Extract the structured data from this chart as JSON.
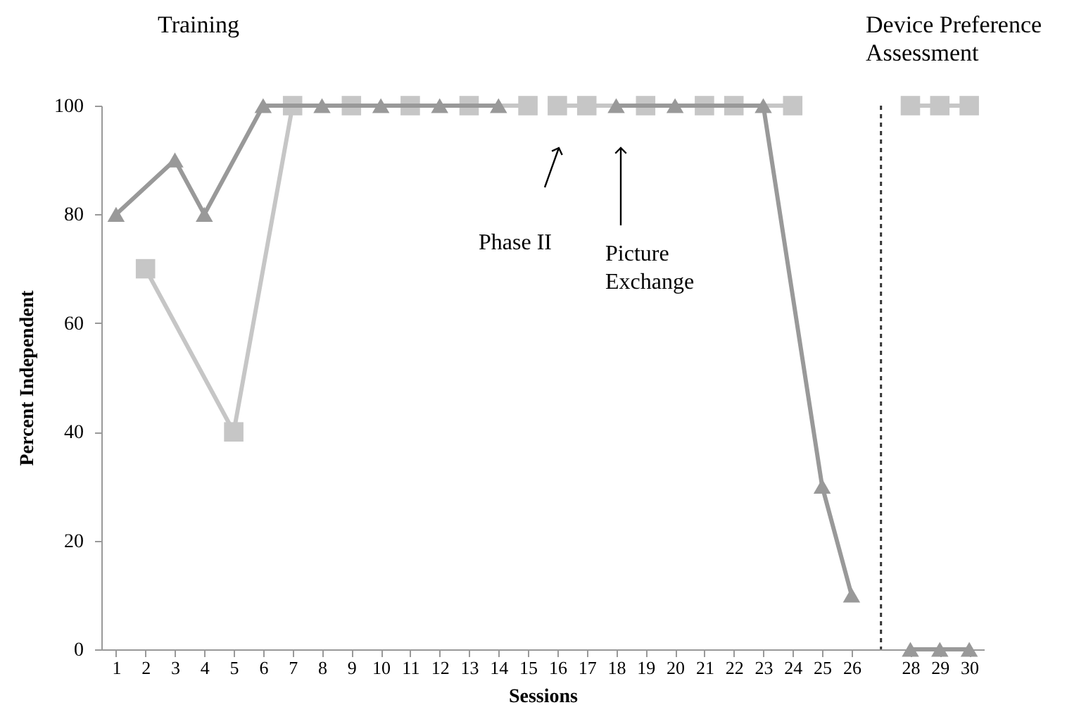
{
  "chart_data": {
    "type": "line",
    "xlabel": "Sessions",
    "ylabel": "Percent Independent",
    "annotations": [
      "Training",
      "Device Preference Assessment",
      "Phase II",
      "Picture Exchange"
    ],
    "xlim": [
      0.5,
      30.5
    ],
    "xticks": [
      1,
      2,
      3,
      4,
      5,
      6,
      7,
      8,
      9,
      10,
      11,
      12,
      13,
      14,
      15,
      16,
      17,
      18,
      19,
      20,
      21,
      22,
      23,
      24,
      25,
      26,
      28,
      29,
      30
    ],
    "ylim": [
      0,
      100
    ],
    "yticks": [
      0,
      20,
      40,
      60,
      80,
      100
    ],
    "ref_lines": [
      {
        "axis": "x",
        "value": 27,
        "color": "#333333",
        "line_style": "dashed"
      }
    ],
    "series": [
      {
        "color": "#c6c6c6",
        "marker": "square",
        "x": [
          2,
          5,
          7,
          9,
          11,
          13,
          15
        ],
        "values": [
          70,
          40,
          100,
          100,
          100,
          100,
          100
        ]
      },
      {
        "color": "#c6c6c6",
        "marker": "square",
        "x": [
          16,
          17,
          19,
          21,
          22,
          24
        ],
        "values": [
          100,
          100,
          100,
          100,
          100,
          100
        ]
      },
      {
        "color": "#c6c6c6",
        "marker": "square",
        "x": [
          28,
          29,
          30
        ],
        "values": [
          100,
          100,
          100
        ]
      },
      {
        "color": "#999999",
        "marker": "triangle",
        "x": [
          1,
          3,
          4,
          6,
          8,
          10,
          12,
          14
        ],
        "values": [
          80,
          90,
          80,
          100,
          100,
          100,
          100,
          100
        ]
      },
      {
        "color": "#999999",
        "marker": "triangle",
        "x": [
          18,
          20,
          23,
          25,
          26
        ],
        "values": [
          100,
          100,
          100,
          30,
          10
        ]
      },
      {
        "color": "#999999",
        "marker": "triangle",
        "x": [
          28,
          29,
          30
        ],
        "values": [
          0,
          0,
          0
        ]
      }
    ]
  }
}
